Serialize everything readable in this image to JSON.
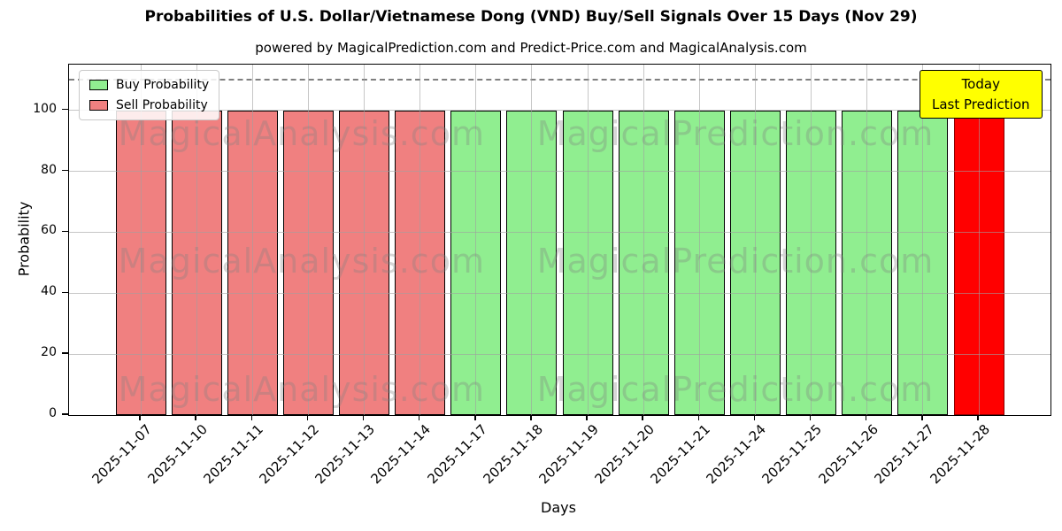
{
  "title": "Probabilities of U.S. Dollar/Vietnamese Dong (VND) Buy/Sell Signals Over 15 Days (Nov 29)",
  "subtitle": "powered by MagicalPrediction.com and Predict-Price.com and MagicalAnalysis.com",
  "legend": {
    "buy_label": "Buy Probability",
    "sell_label": "Sell Probability"
  },
  "annotation": {
    "line1": "Today",
    "line2": "Last Prediction"
  },
  "axes": {
    "x_label": "Days",
    "y_label": "Probability",
    "y_ticks": [
      0,
      20,
      40,
      60,
      80,
      100
    ]
  },
  "watermarks": {
    "left": "MagicalAnalysis.com",
    "right": "MagicalPrediction.com"
  },
  "colors": {
    "buy": "#90ee90",
    "sell": "#f08080",
    "today": "#ff0000",
    "today_border": "#8b0000",
    "bar_border": "#000000",
    "annotation_bg": "#ffff00",
    "grid": "#b0b0b0",
    "dashed_line": "#7f7f7f"
  },
  "chart_data": {
    "type": "bar",
    "title": "Probabilities of U.S. Dollar/Vietnamese Dong (VND) Buy/Sell Signals Over 15 Days (Nov 29)",
    "xlabel": "Days",
    "ylabel": "Probability",
    "categories": [
      "2025-11-07",
      "2025-11-10",
      "2025-11-11",
      "2025-11-12",
      "2025-11-13",
      "2025-11-14",
      "2025-11-17",
      "2025-11-18",
      "2025-11-19",
      "2025-11-20",
      "2025-11-21",
      "2025-11-24",
      "2025-11-25",
      "2025-11-26",
      "2025-11-27",
      "2025-11-28"
    ],
    "values": [
      100,
      100,
      100,
      100,
      100,
      100,
      100,
      100,
      100,
      100,
      100,
      100,
      100,
      100,
      100,
      100
    ],
    "signals": [
      "sell",
      "sell",
      "sell",
      "sell",
      "sell",
      "sell",
      "buy",
      "buy",
      "buy",
      "buy",
      "buy",
      "buy",
      "buy",
      "buy",
      "buy",
      "today"
    ],
    "ylim": [
      0,
      115
    ],
    "dashed_line_y": 110,
    "grid": true,
    "legend_entries": [
      "Buy Probability",
      "Sell Probability"
    ],
    "legend_position": "upper left"
  }
}
